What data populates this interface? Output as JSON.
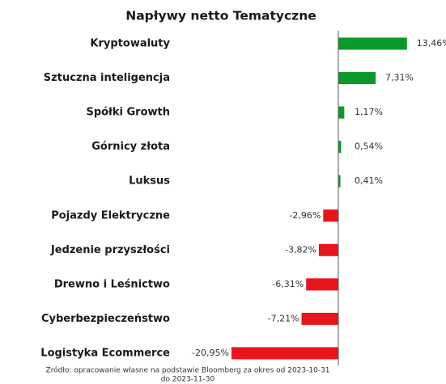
{
  "chart_data": {
    "type": "hbar",
    "title": "Napływy netto Tematyczne",
    "categories": [
      "Kryptowaluty",
      "Sztuczna inteligencja",
      "Spółki Growth",
      "Górnicy złota",
      "Luksus",
      "Pojazdy Elektryczne",
      "Jedzenie przyszłości",
      "Drewno i Leśnictwo",
      "Cyberbezpieczeństwo",
      "Logistyka Ecommerce"
    ],
    "values": [
      13.46,
      7.31,
      1.17,
      0.54,
      0.41,
      -2.96,
      -3.82,
      -6.31,
      -7.21,
      -20.95
    ],
    "value_labels": [
      "13,46%",
      "7,31%",
      "1,17%",
      "0,54%",
      "0,41%",
      "-2,96%",
      "-3,82%",
      "-6,31%",
      "-7,21%",
      "-20,95%"
    ],
    "positive_color": "#0b9a2a",
    "negative_color": "#e8141b",
    "xlim": [
      -21.5,
      14
    ],
    "source": [
      "Źródło: opracowanie własne na podstawie Bloomberg za okres od 2023-10-31",
      "do 2023-11-30"
    ]
  }
}
